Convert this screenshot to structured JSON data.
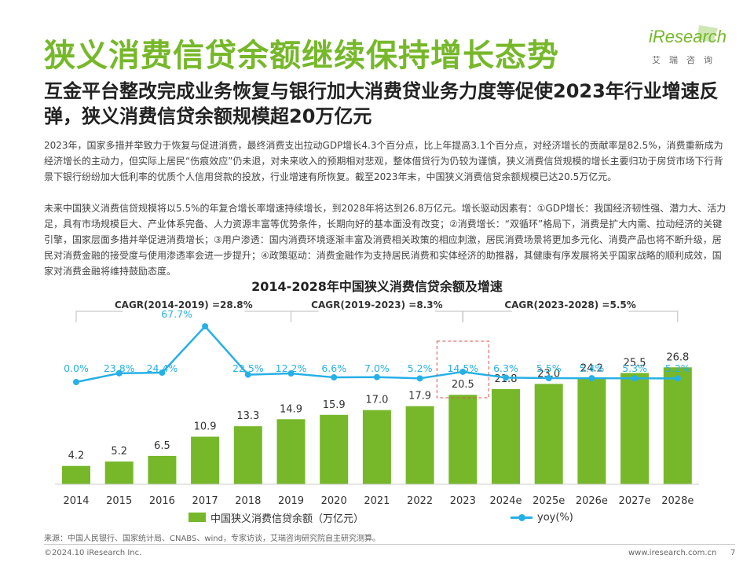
{
  "header": {
    "title": "狭义消费信贷余额继续保持增长态势",
    "logo_text": "iResearch",
    "logo_sub": "艾瑞咨询"
  },
  "subtitle": "互金平台整改完成业务恢复与银行加大消费贷业务力度等促使2023年行业增速反弹，狭义消费信贷余额规模超20万亿元",
  "paragraphs": [
    "2023年，国家多措并举致力于恢复与促进消费，最终消费支出拉动GDP增长4.3个百分点，比上年提高3.1个百分点，对经济增长的贡献率是82.5%，消费重新成为经济增长的主动力，但实际上居民“伤痕效应”仍未退，对未来收入的预期相对悲观，整体借贷行为仍较为谨慎，狭义消费信贷规模的增长主要归功于房贷市场下行背景下银行纷纷加大低利率的优质个人信用贷款的投放，行业增速有所恢复。截至2023年末，中国狭义消费信贷余额规模已达20.5万亿元。",
    "未来中国狭义消费信贷规模将以5.5%的年复合增长率增速持续增长，到2028年将达到26.8万亿元。增长驱动因素有：①GDP增长：我国经济韧性强、潜力大、活力足，具有市场规模巨大、产业体系完备、人力资源丰富等优势条件，长期向好的基本面没有改变；②消费增长：“双循环”格局下，消费是扩大内需、拉动经济的关键引擎，国家层面多措并举促进消费增长；③用户渗透：国内消费环境逐渐丰富及消费相关政策的相应刺激，居民消费场景将更加多元化、消费产品也将不断升级，居民对消费金融的接受度与使用渗透率会进一步提升；④政策驱动：消费金融作为支持居民消费和实体经济的助推器，其健康有序发展将关乎国家战略的顺利成效，国家对消费金融将维持鼓励态度。"
  ],
  "chart_data": {
    "type": "bar+line",
    "title": "2014-2028年中国狭义消费信贷余额及增速",
    "categories": [
      "2014",
      "2015",
      "2016",
      "2017",
      "2018",
      "2019",
      "2020",
      "2021",
      "2022",
      "2023",
      "2024e",
      "2025e",
      "2026e",
      "2027e",
      "2028e"
    ],
    "series": [
      {
        "name": "中国狭义消费信贷余额（万亿元）",
        "type": "bar",
        "color": "#76b82a",
        "values": [
          4.2,
          5.2,
          6.5,
          10.9,
          13.3,
          14.9,
          15.9,
          17.0,
          17.9,
          20.5,
          21.8,
          23.0,
          24.2,
          25.5,
          26.8
        ],
        "labels": [
          "4.2",
          "5.2",
          "6.5",
          "10.9",
          "13.3",
          "14.9",
          "15.9",
          "17.0",
          "17.9",
          "20.5",
          "21.8",
          "23.0",
          "24.2",
          "25.5",
          "26.8"
        ]
      },
      {
        "name": "yoy(%)",
        "type": "line",
        "color": "#27b0e6",
        "values": [
          0.0,
          23.8,
          24.4,
          67.7,
          22.5,
          12.2,
          6.6,
          7.0,
          5.2,
          14.5,
          6.3,
          5.5,
          5.4,
          5.3,
          5.2
        ],
        "labels": [
          "0.0%",
          "23.8%",
          "24.4%",
          "67.7%",
          "22.5%",
          "12.2%",
          "6.6%",
          "7.0%",
          "5.2%",
          "14.5%",
          "6.3%",
          "5.5%",
          "5.4%",
          "5.3%",
          "5.2%"
        ]
      }
    ],
    "cagr": [
      {
        "label": "CAGR(2014-2019) =28.8%",
        "from": 0,
        "to": 5
      },
      {
        "label": "CAGR(2019-2023) =8.3%",
        "from": 5,
        "to": 9
      },
      {
        "label": "CAGR(2023-2028) =5.5%",
        "from": 9,
        "to": 14
      }
    ],
    "highlight_index": 9,
    "legend_position": "bottom"
  },
  "source": "来源：中国人民银行、国家统计局、CNABS、wind，专家访谈，艾瑞咨询研究院自主研究测算。",
  "footer": {
    "copyright": "©2024.10 iResearch Inc.",
    "url": "www.iresearch.com.cn",
    "page": "7"
  }
}
